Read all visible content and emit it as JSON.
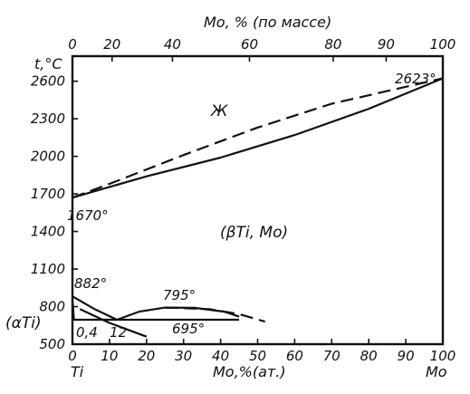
{
  "chart_data": {
    "type": "line",
    "top_axis": {
      "label": "Mo, % (по массе)",
      "ticks": [
        "0",
        "20",
        "40",
        "60",
        "80",
        "90",
        "100"
      ],
      "tick_positions_at_pct": [
        0,
        10.7,
        27.0,
        47.8,
        70.4,
        84.7,
        100
      ]
    },
    "x_axis": {
      "label": "Mo,%(ат.)",
      "ticks": [
        "0",
        "10",
        "20",
        "30",
        "40",
        "50",
        "60",
        "70",
        "80",
        "90",
        "100"
      ],
      "range": [
        0,
        100
      ],
      "left_component": "Ti",
      "right_component": "Mo"
    },
    "y_axis": {
      "label": "t,°C",
      "ticks": [
        "500",
        "800",
        "1100",
        "1400",
        "1700",
        "2000",
        "2300",
        "2600"
      ],
      "range": [
        500,
        2800
      ]
    },
    "annotations": {
      "mo_melting": "2623°",
      "ti_melting": "1670°",
      "ti_transition": "882°",
      "monotectoid": "795°",
      "eutectoid": "695°",
      "alpha_solubility": "0,4",
      "eutectoid_composition": "12",
      "liquid_phase": "Ж",
      "beta_phase": "(βTi, Mo)",
      "alpha_phase": "(αTi)"
    },
    "series": [
      {
        "style": "solid",
        "points": [
          [
            0,
            1670
          ],
          [
            20,
            1840
          ],
          [
            40,
            1990
          ],
          [
            60,
            2170
          ],
          [
            80,
            2380
          ],
          [
            100,
            2623
          ]
        ]
      },
      {
        "style": "dashed",
        "points": [
          [
            0,
            1670
          ],
          [
            10,
            1780
          ],
          [
            30,
            2010
          ],
          [
            50,
            2230
          ],
          [
            70,
            2420
          ],
          [
            100,
            2623
          ]
        ]
      },
      {
        "style": "solid",
        "points": [
          [
            0,
            882
          ],
          [
            6,
            780
          ],
          [
            12,
            695
          ]
        ]
      },
      {
        "style": "solid",
        "points": [
          [
            0,
            860
          ],
          [
            0.4,
            695
          ]
        ]
      },
      {
        "style": "solid",
        "points": [
          [
            0,
            695
          ],
          [
            45,
            695
          ]
        ]
      },
      {
        "style": "solid",
        "points": [
          [
            12,
            695
          ],
          [
            18,
            760
          ],
          [
            25,
            792
          ],
          [
            33,
            790
          ],
          [
            41,
            760
          ],
          [
            45,
            720
          ]
        ]
      },
      {
        "style": "dashed",
        "points": [
          [
            25,
            792
          ],
          [
            37,
            780
          ],
          [
            45,
            740
          ],
          [
            52,
            680
          ]
        ]
      },
      {
        "style": "solid",
        "points": [
          [
            2,
            780
          ],
          [
            10,
            670
          ],
          [
            20,
            560
          ]
        ]
      }
    ]
  }
}
